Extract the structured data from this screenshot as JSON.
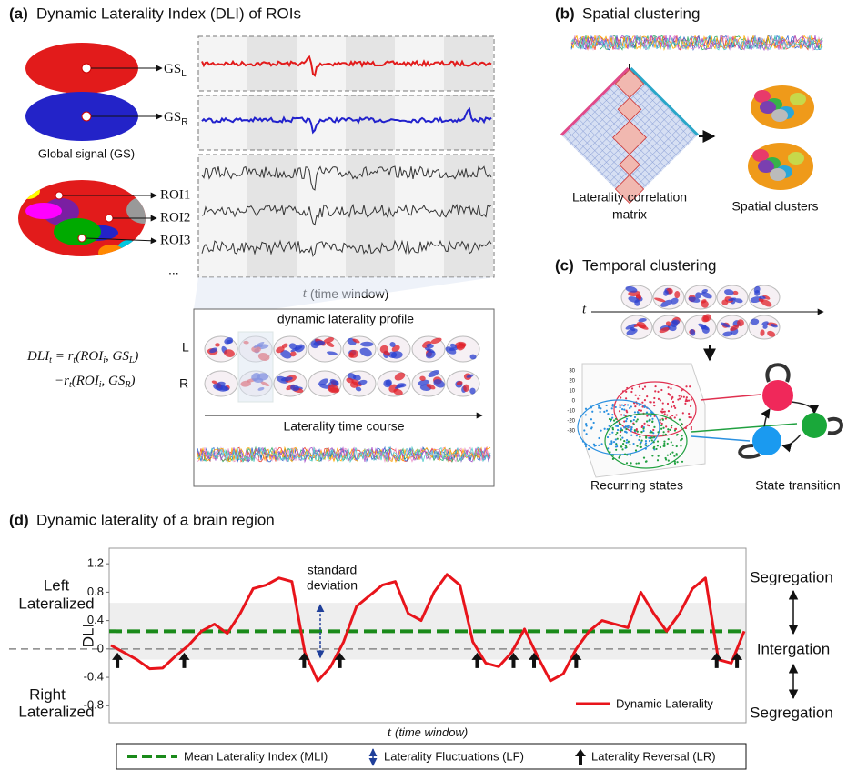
{
  "panel_a": {
    "label": "(a)",
    "title": "Dynamic Laterality Index (DLI) of ROIs",
    "gs_left": {
      "main": "GS",
      "sub": "L"
    },
    "gs_right": {
      "main": "GS",
      "sub": "R"
    },
    "global_signal": "Global signal (GS)",
    "rois": [
      "ROI1",
      "ROI2",
      "ROI3"
    ],
    "ellipsis": "...",
    "time_axis": {
      "var": "t",
      "text": "(time window)"
    },
    "profile_title": "dynamic laterality  profile",
    "rows": [
      "L",
      "R"
    ],
    "time_course": "Laterality  time course",
    "formula": [
      [
        {
          "text": "DLI"
        },
        {
          "text": "t",
          "sub": true
        },
        {
          "text": " = r"
        },
        {
          "text": "t",
          "sub": true
        },
        {
          "text": "(ROI"
        },
        {
          "text": "i",
          "sub": true
        },
        {
          "text": ", GS"
        },
        {
          "text": "L",
          "sub": true
        },
        {
          "text": ")"
        }
      ],
      [
        {
          "text": "−r"
        },
        {
          "text": "t",
          "sub": true
        },
        {
          "text": "(ROI"
        },
        {
          "text": "i",
          "sub": true
        },
        {
          "text": ", GS"
        },
        {
          "text": "R",
          "sub": true
        },
        {
          "text": ")"
        }
      ]
    ]
  },
  "panel_b": {
    "label": "(b)",
    "title": "Spatial clustering",
    "matrix_label": [
      "Laterality correlation",
      "matrix"
    ],
    "clusters_label": "Spatial clusters"
  },
  "panel_c": {
    "label": "(c)",
    "title": "Temporal clustering",
    "time_var": "t",
    "scatter_ticks": [
      30,
      20,
      10,
      0,
      -10,
      -20,
      -30
    ],
    "scatter_label": "Recurring states",
    "transition_label": "State transition"
  },
  "panel_d": {
    "label": "(d)",
    "title": "Dynamic laterality of a brain region",
    "left": [
      "Left",
      "Lateralized"
    ],
    "right": [
      "Right",
      "Lateralized"
    ],
    "sd_label": [
      "standard",
      "deviation"
    ],
    "segregation_top": "Segregation",
    "integration": "Intergation",
    "segregation_bottom": "Segregation",
    "legend": [
      "Mean Laterality Index (MLI)",
      "Laterality Fluctuations (LF)",
      "Laterality Reversal (LR)"
    ]
  },
  "chart_data": {
    "type": "line",
    "y_label": "DLI",
    "x_label": {
      "var": "t",
      "text": "(time window)"
    },
    "ylim": [
      -1.04,
      1.42
    ],
    "yticks": [
      -0.8,
      -0.4,
      0,
      0.4,
      0.8,
      1.2
    ],
    "series": [
      {
        "name": "Dynamic Laterality",
        "color": "#e8141b",
        "values": [
          0.05,
          -0.05,
          -0.15,
          -0.28,
          -0.27,
          -0.1,
          0.05,
          0.25,
          0.35,
          0.22,
          0.5,
          0.85,
          0.9,
          1.0,
          0.95,
          -0.05,
          -0.45,
          -0.25,
          0.1,
          0.6,
          0.75,
          0.9,
          0.95,
          0.5,
          0.4,
          0.8,
          1.05,
          0.9,
          0.1,
          -0.2,
          -0.25,
          -0.05,
          0.28,
          -0.1,
          -0.45,
          -0.35,
          0.0,
          0.25,
          0.4,
          0.35,
          0.3,
          0.8,
          0.5,
          0.25,
          0.5,
          0.85,
          1.0,
          -0.15,
          -0.2,
          0.25
        ]
      }
    ],
    "mean": 0.25,
    "mean_color": "#1a8a1a",
    "std": 0.4,
    "band_color": "#eeeeee",
    "legend": "lower right"
  }
}
